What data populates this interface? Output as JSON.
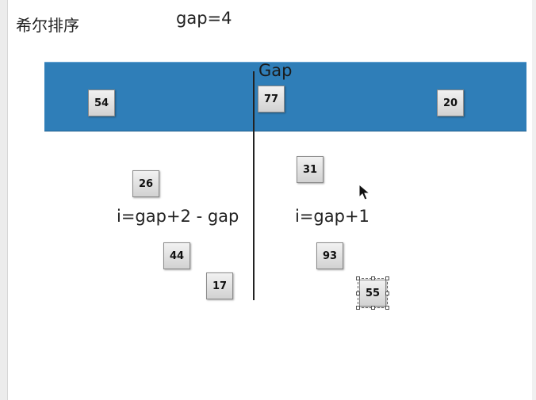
{
  "header": {
    "title": "希尔排序",
    "gap_label": "gap=4"
  },
  "band": {
    "color": "#2f7eb8",
    "gap_label": "Gap",
    "values": [
      "54",
      "77",
      "20"
    ]
  },
  "left_group": {
    "values": [
      "26",
      "44",
      "17"
    ],
    "formula": "i=gap+2 - gap"
  },
  "right_group": {
    "values": [
      "31",
      "93",
      "55"
    ],
    "formula": "i=gap+1",
    "selected_value": "55"
  },
  "icons": {
    "cursor": "mouse-pointer-icon"
  }
}
